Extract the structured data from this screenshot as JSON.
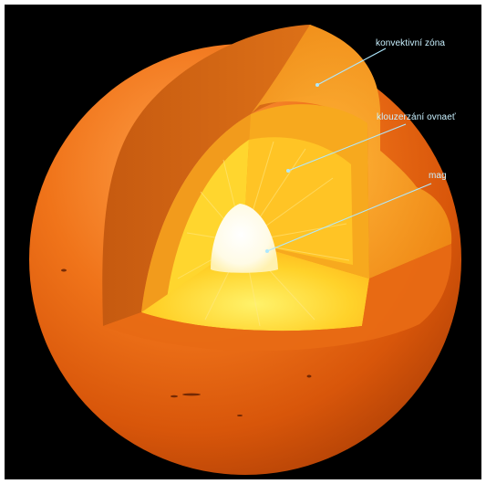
{
  "labels": {
    "convective_zone": "konvektivní zóna",
    "radiative_zone": "klouzerzání ovnaeť",
    "core": "mag"
  },
  "colors": {
    "background": "#000000",
    "outer_shell": "#e8640f",
    "convective_zone": "#f39a1e",
    "radiative_zone": "#ffd027",
    "core": "#fffdf0",
    "pointer_line": "#aee8ff",
    "label_text": "#c9f1ff"
  },
  "icons": {
    "pointer": "arrow-pointer-icon"
  }
}
